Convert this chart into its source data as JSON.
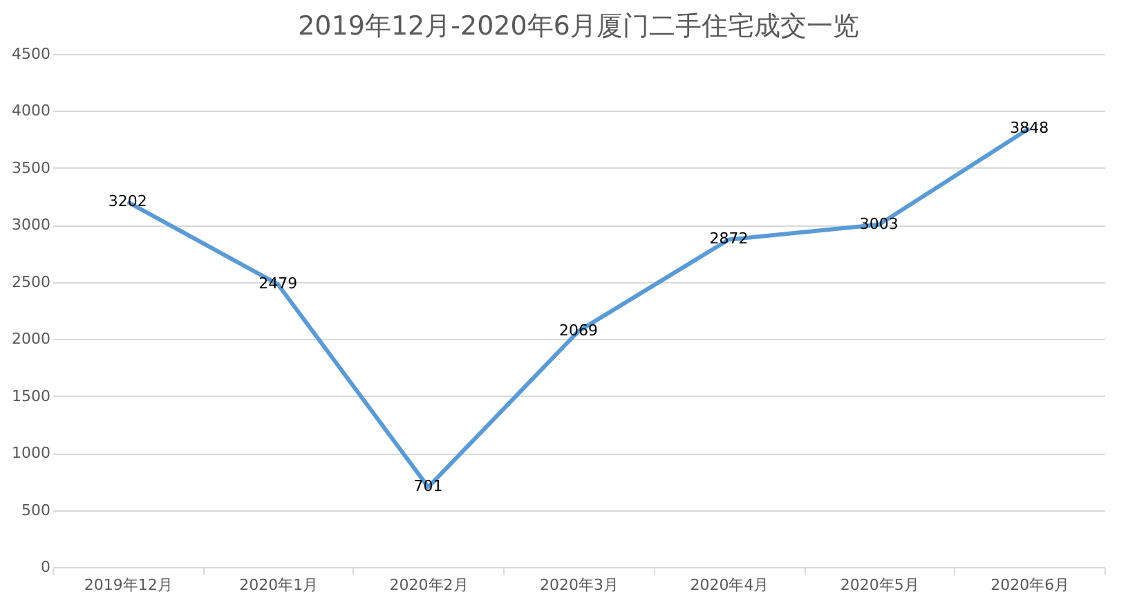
{
  "chart_data": {
    "type": "line",
    "title": "2019年12月-2020年6月厦门二手住宅成交一览",
    "categories": [
      "2019年12月",
      "2020年1月",
      "2020年2月",
      "2020年3月",
      "2020年4月",
      "2020年5月",
      "2020年6月"
    ],
    "series": [
      {
        "color": "#5b9bd5",
        "values": [
          3202,
          2479,
          701,
          2069,
          2872,
          3003,
          3848
        ]
      }
    ],
    "ylim": [
      0,
      4500
    ],
    "yticks": [
      0,
      500,
      1000,
      1500,
      2000,
      2500,
      3000,
      3500,
      4000,
      4500
    ],
    "grid": "y",
    "data_labels": true,
    "marker": "none",
    "line_style": "solid",
    "legend": false
  }
}
